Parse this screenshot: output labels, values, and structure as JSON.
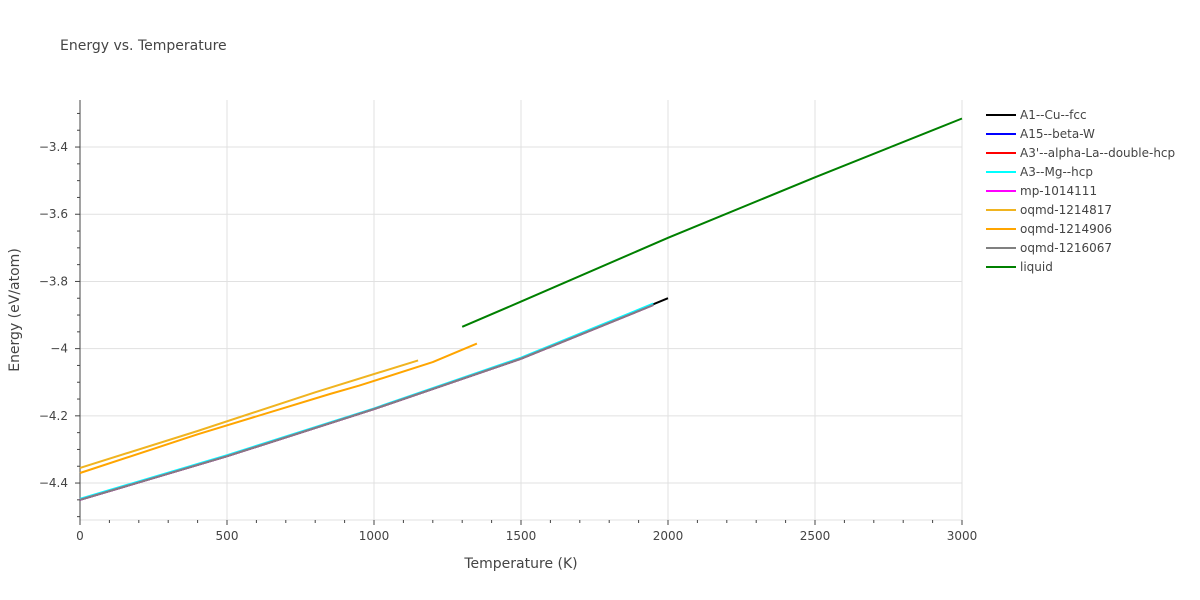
{
  "chart_data": {
    "type": "line",
    "title": "Energy vs. Temperature",
    "xlabel": "Temperature (K)",
    "ylabel": "Energy (eV/atom)",
    "xlim": [
      0,
      3000
    ],
    "ylim": [
      -4.51,
      -3.26
    ],
    "x_ticks": [
      0,
      500,
      1000,
      1500,
      2000,
      2500,
      3000
    ],
    "x_tick_labels": [
      "0",
      "500",
      "1000",
      "1500",
      "2000",
      "2500",
      "3000"
    ],
    "y_ticks": [
      -4.4,
      -4.2,
      -4.0,
      -3.8,
      -3.6,
      -3.4
    ],
    "y_tick_labels": [
      "−4.4",
      "−4.2",
      "−4",
      "−3.8",
      "−3.6",
      "−3.4"
    ],
    "grid": true,
    "legend_position": "top-right",
    "series": [
      {
        "name": "A1--Cu--fcc",
        "color": "#000000",
        "x": [
          0,
          500,
          1000,
          1500,
          2000
        ],
        "y": [
          -4.45,
          -4.32,
          -4.18,
          -4.03,
          -3.85
        ]
      },
      {
        "name": "A15--beta-W",
        "color": "#0000ff",
        "x": [
          0,
          500,
          1000,
          1500,
          1950
        ],
        "y": [
          -4.45,
          -4.32,
          -4.18,
          -4.03,
          -3.87
        ]
      },
      {
        "name": "A3'--alpha-La--double-hcp",
        "color": "#ff0000",
        "x": [
          0,
          500,
          1000,
          1500,
          1950
        ],
        "y": [
          -4.45,
          -4.32,
          -4.18,
          -4.03,
          -3.87
        ]
      },
      {
        "name": "A3--Mg--hcp",
        "color": "#00ffff",
        "x": [
          0,
          500,
          1000,
          1500,
          1950
        ],
        "y": [
          -4.447,
          -4.317,
          -4.178,
          -4.027,
          -3.866
        ]
      },
      {
        "name": "mp-1014111",
        "color": "#ff00ff",
        "x": [
          0,
          500,
          1000,
          1500,
          1950
        ],
        "y": [
          -4.45,
          -4.32,
          -4.18,
          -4.03,
          -3.87
        ]
      },
      {
        "name": "oqmd-1214817",
        "color": "#f0b420",
        "x": [
          0,
          400,
          800,
          1150
        ],
        "y": [
          -4.355,
          -4.245,
          -4.13,
          -4.035
        ]
      },
      {
        "name": "oqmd-1214906",
        "color": "#ffa500",
        "x": [
          0,
          400,
          850,
          950,
          1200,
          1350
        ],
        "y": [
          -4.37,
          -4.255,
          -4.135,
          -4.11,
          -4.04,
          -3.985
        ]
      },
      {
        "name": "oqmd-1216067",
        "color": "#808080",
        "x": [
          0,
          500,
          1000,
          1500,
          1950
        ],
        "y": [
          -4.45,
          -4.32,
          -4.18,
          -4.03,
          -3.87
        ]
      },
      {
        "name": "liquid",
        "color": "#008000",
        "x": [
          1300,
          1500,
          2000,
          2500,
          3000
        ],
        "y": [
          -3.935,
          -3.86,
          -3.67,
          -3.49,
          -3.315
        ]
      }
    ]
  }
}
